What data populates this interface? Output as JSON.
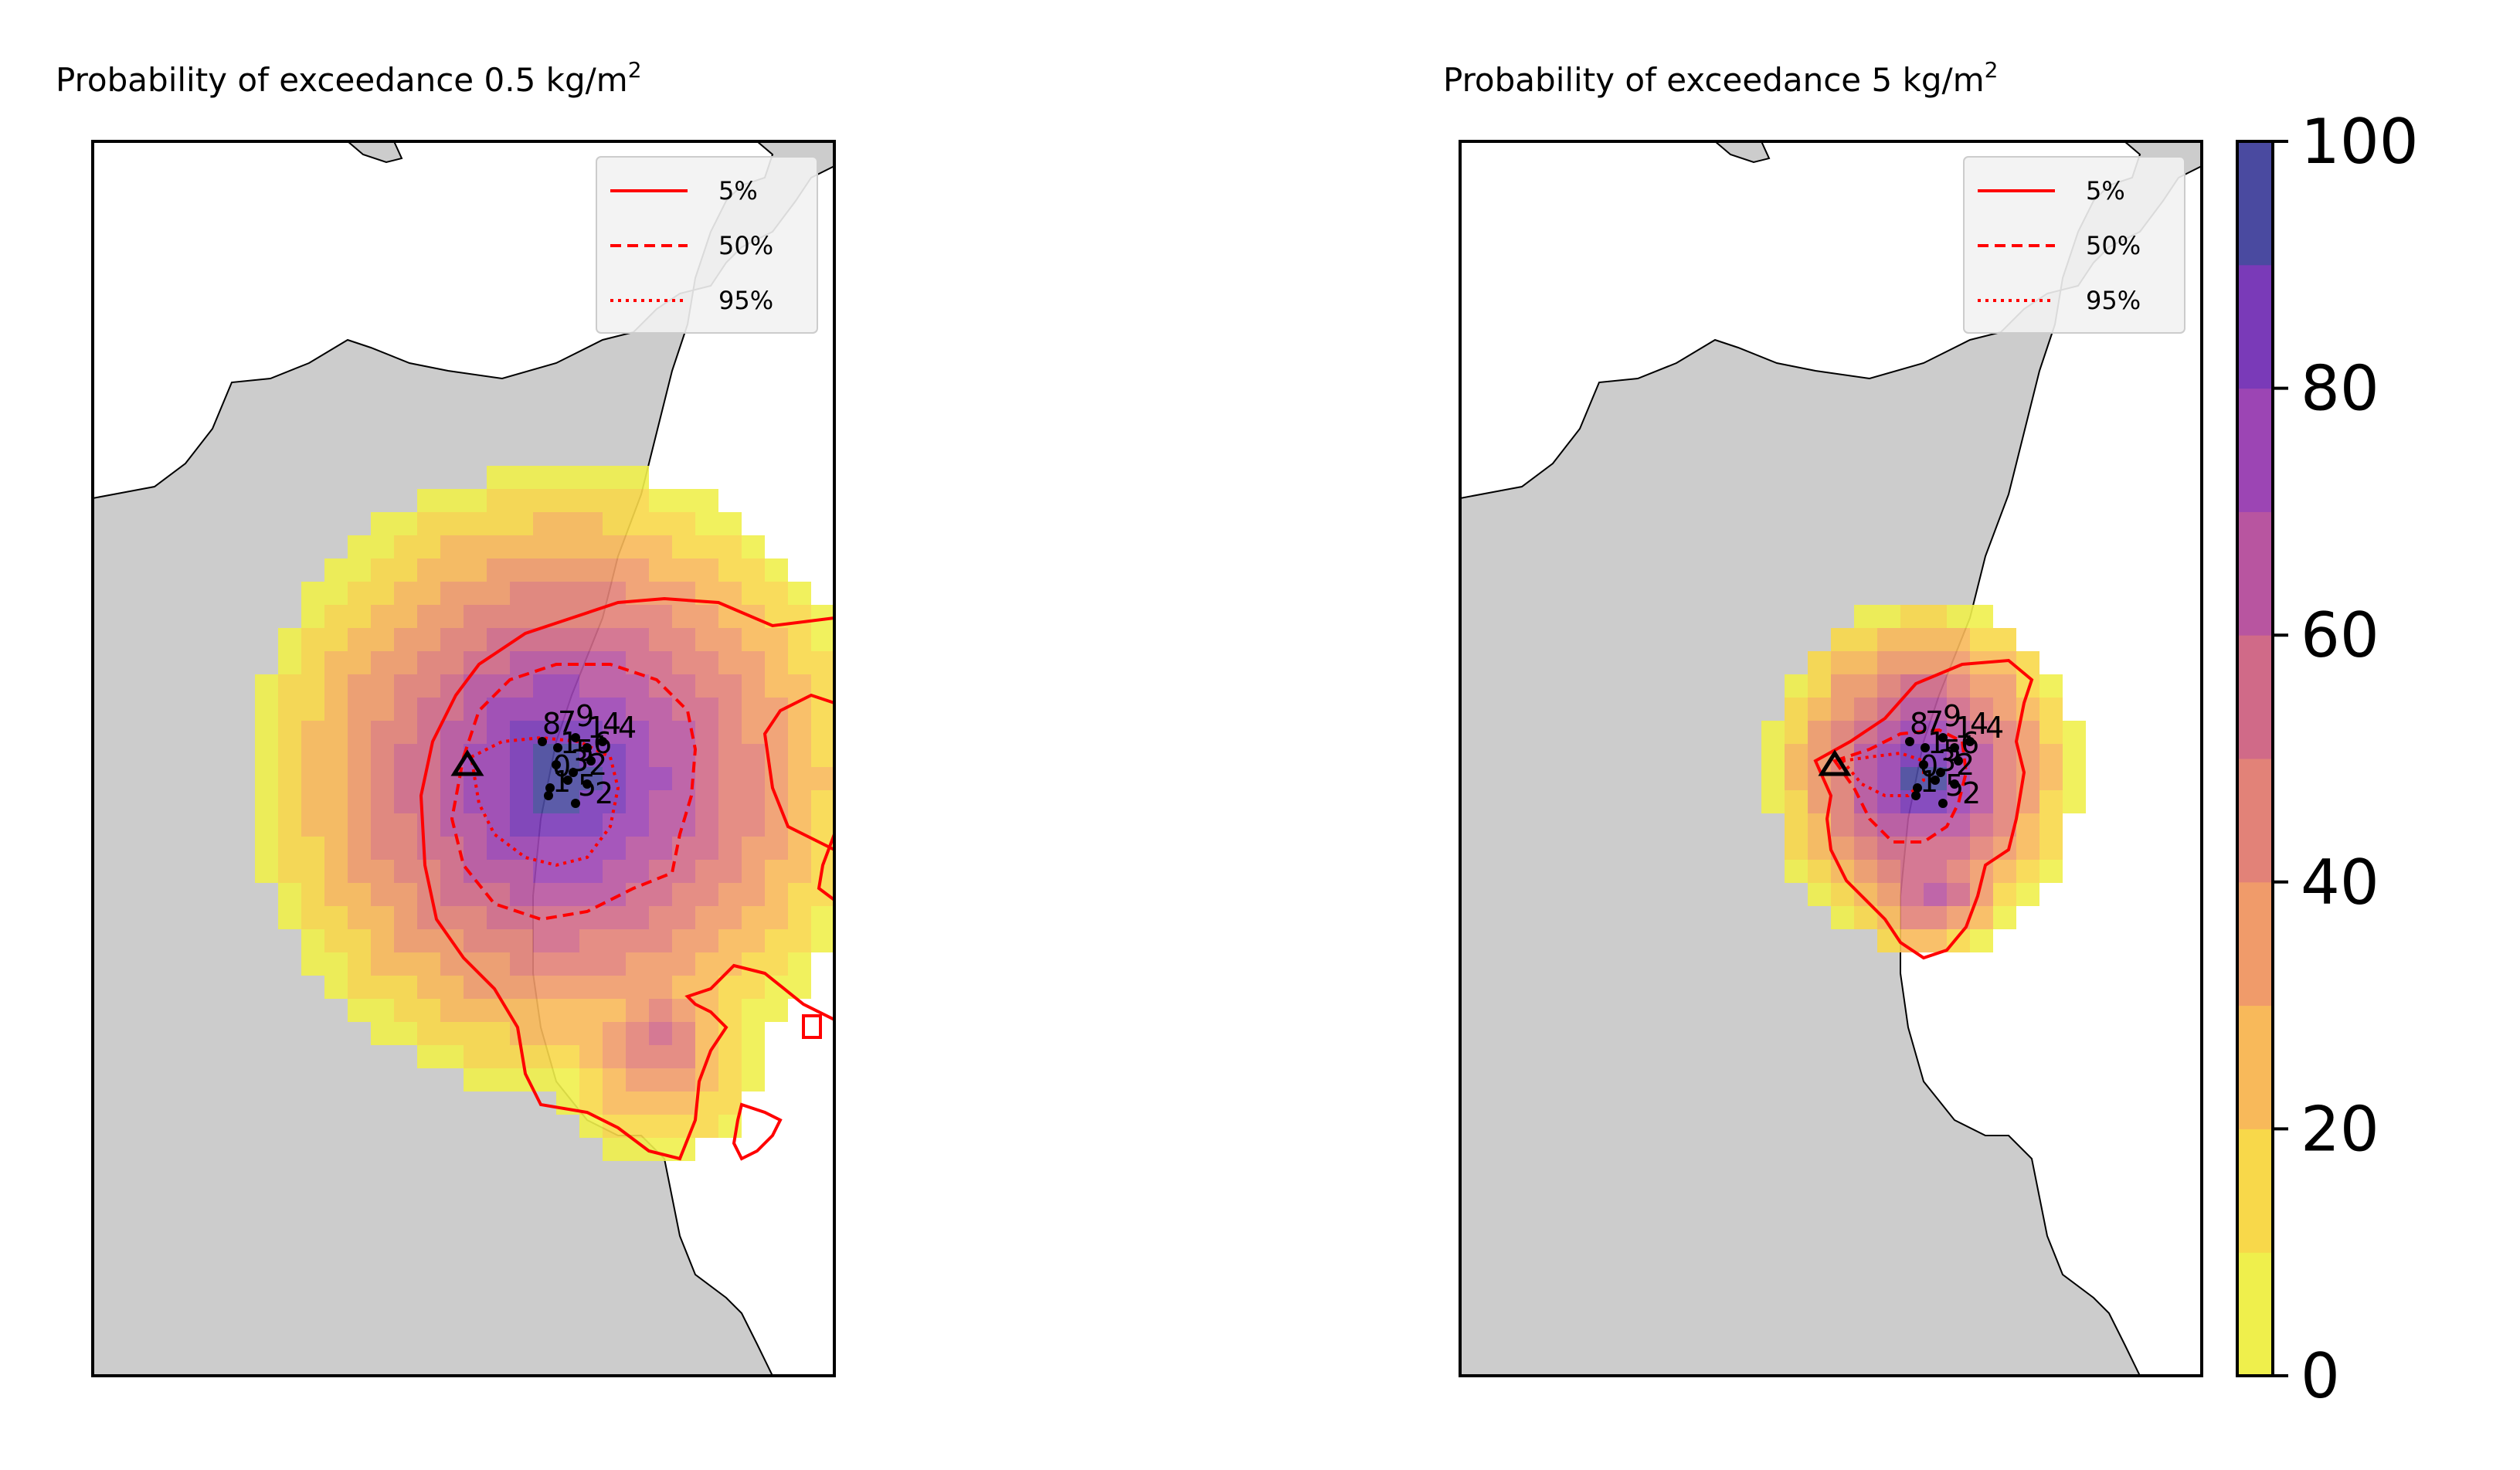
{
  "maps": [
    {
      "id": "left",
      "title": "Probability of exceedance 0.5 kg/m",
      "title_sup": "2",
      "legend": [
        "5%",
        "50%",
        "95%"
      ]
    },
    {
      "id": "right",
      "title": "Probability of exceedance 5 kg/m",
      "title_sup": "2",
      "legend": [
        "5%",
        "50%",
        "95%"
      ]
    }
  ],
  "colorbar": {
    "ticks": [
      "0",
      "20",
      "40",
      "60",
      "80",
      "100"
    ],
    "colormap": "plasma_r",
    "bands": 10
  },
  "vent_labels": [
    "8",
    "7",
    "9",
    "4",
    "1",
    "1",
    "5",
    "6",
    "0",
    "3",
    "2",
    "5",
    "1",
    "2",
    "4"
  ],
  "colors": {
    "land": "#cccccc",
    "sea": "#ffffff",
    "contour": "#ff0000",
    "frame": "#000000"
  }
}
